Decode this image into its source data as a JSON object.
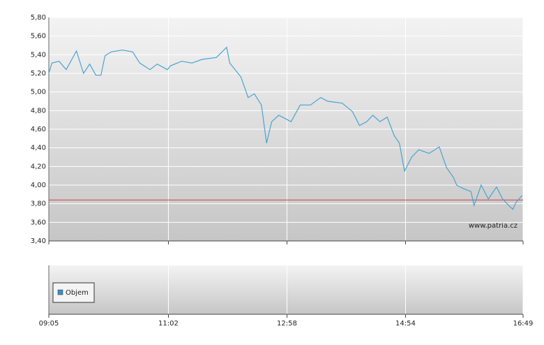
{
  "chart_data": [
    {
      "type": "line",
      "x": [
        "09:05",
        "09:08",
        "09:15",
        "09:22",
        "09:32",
        "09:39",
        "09:45",
        "09:51",
        "09:56",
        "10:00",
        "10:06",
        "10:17",
        "10:27",
        "10:34",
        "10:44",
        "10:51",
        "11:01",
        "11:04",
        "11:15",
        "11:25",
        "11:35",
        "11:49",
        "11:59",
        "12:02",
        "12:13",
        "12:20",
        "12:26",
        "12:33",
        "12:38",
        "12:43",
        "12:50",
        "12:57",
        "13:02",
        "13:11",
        "13:21",
        "13:31",
        "13:38",
        "13:52",
        "14:02",
        "14:09",
        "14:16",
        "14:22",
        "14:29",
        "14:36",
        "14:43",
        "14:48",
        "14:53",
        "15:00",
        "15:07",
        "15:17",
        "15:27",
        "15:34",
        "15:41",
        "15:44",
        "15:51",
        "15:58",
        "16:01",
        "16:08",
        "16:15",
        "16:23",
        "16:29",
        "16:35",
        "16:39",
        "16:42",
        "16:48"
      ],
      "series": [
        {
          "color": "#4aa3d0",
          "values": [
            5.2,
            5.31,
            5.33,
            5.24,
            5.44,
            5.2,
            5.3,
            5.18,
            5.18,
            5.39,
            5.43,
            5.45,
            5.43,
            5.31,
            5.24,
            5.3,
            5.24,
            5.28,
            5.33,
            5.31,
            5.35,
            5.37,
            5.48,
            5.31,
            5.16,
            4.94,
            4.98,
            4.86,
            4.45,
            4.68,
            4.75,
            4.71,
            4.68,
            4.86,
            4.86,
            4.94,
            4.9,
            4.88,
            4.79,
            4.64,
            4.68,
            4.75,
            4.68,
            4.73,
            4.53,
            4.45,
            4.15,
            4.3,
            4.38,
            4.34,
            4.41,
            4.19,
            4.08,
            4.0,
            3.96,
            3.93,
            3.78,
            4.0,
            3.85,
            3.98,
            3.85,
            3.78,
            3.74,
            3.81,
            3.89
          ]
        }
      ],
      "xlim": [
        "09:05",
        "16:49"
      ],
      "ylim": [
        3.4,
        5.8
      ],
      "yticks": [
        {
          "value": 3.4,
          "label": "3,40"
        },
        {
          "value": 3.6,
          "label": "3,60"
        },
        {
          "value": 3.8,
          "label": "3,80"
        },
        {
          "value": 4.0,
          "label": "4,00"
        },
        {
          "value": 4.2,
          "label": "4,20"
        },
        {
          "value": 4.4,
          "label": "4,40"
        },
        {
          "value": 4.6,
          "label": "4,60"
        },
        {
          "value": 4.8,
          "label": "4,80"
        },
        {
          "value": 5.0,
          "label": "5,00"
        },
        {
          "value": 5.2,
          "label": "5,20"
        },
        {
          "value": 5.4,
          "label": "5,40"
        },
        {
          "value": 5.6,
          "label": "5,60"
        },
        {
          "value": 5.8,
          "label": "5,80"
        }
      ],
      "reference_line": 3.84,
      "reference_color": "#d04040",
      "watermark": "www.patria.cz",
      "grid": true
    },
    {
      "type": "bar",
      "series": [
        {
          "name": "Objem",
          "color": "#3a8fc8",
          "values": []
        }
      ],
      "xlim": [
        "09:05",
        "16:49"
      ],
      "xticks": [
        "09:05",
        "11:02",
        "12:58",
        "14:54",
        "16:49"
      ],
      "grid": true
    }
  ]
}
